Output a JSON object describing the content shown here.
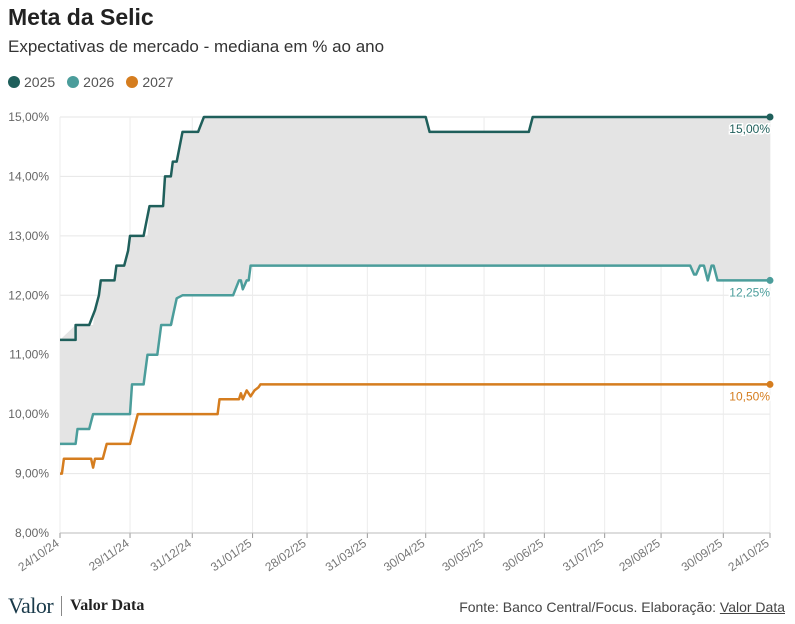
{
  "header": {
    "title": "Meta da Selic",
    "subtitle": "Expectativas de mercado - mediana em % ao ano"
  },
  "footer": {
    "logo_primary": "Valor",
    "logo_secondary": "Valor Data",
    "source_prefix": "Fonte: Banco Central/Focus. Elaboração:",
    "source_link": "Valor Data"
  },
  "chart_data": {
    "type": "line",
    "title": "Meta da Selic",
    "subtitle": "Expectativas de mercado - mediana em % ao ano",
    "ylim": [
      8,
      15
    ],
    "y_ticks": [
      8,
      9,
      10,
      11,
      12,
      13,
      14,
      15
    ],
    "y_tick_labels": [
      "8,00%",
      "9,00%",
      "10,00%",
      "11,00%",
      "12,00%",
      "13,00%",
      "14,00%",
      "15,00%"
    ],
    "x_tick_labels": [
      "24/10/24",
      "29/11/24",
      "31/12/24",
      "31/01/25",
      "28/02/25",
      "31/03/25",
      "30/04/25",
      "30/05/25",
      "30/06/25",
      "31/07/25",
      "29/08/25",
      "30/09/25",
      "24/10/25"
    ],
    "x_tick_dates": [
      "2024-10-24",
      "2024-11-29",
      "2024-12-31",
      "2025-01-31",
      "2025-02-28",
      "2025-03-31",
      "2025-04-30",
      "2025-05-30",
      "2025-06-30",
      "2025-07-31",
      "2025-08-29",
      "2025-09-30",
      "2025-10-24"
    ],
    "grid": true,
    "legend": "top-left",
    "shaded_band": {
      "between": [
        "2025",
        "2026"
      ],
      "color": "#e4e4e4"
    },
    "series": [
      {
        "name": "2025",
        "color": "#1f5f5b",
        "end_label": "15,00%",
        "points": [
          [
            "2024-10-24",
            11.25
          ],
          [
            "2024-11-01",
            11.25
          ],
          [
            "2024-11-01",
            11.5
          ],
          [
            "2024-11-08",
            11.5
          ],
          [
            "2024-11-11",
            11.75
          ],
          [
            "2024-11-13",
            12.0
          ],
          [
            "2024-11-14",
            12.25
          ],
          [
            "2024-11-21",
            12.25
          ],
          [
            "2024-11-22",
            12.5
          ],
          [
            "2024-11-26",
            12.5
          ],
          [
            "2024-11-28",
            12.75
          ],
          [
            "2024-11-29",
            13.0
          ],
          [
            "2024-12-06",
            13.0
          ],
          [
            "2024-12-09",
            13.5
          ],
          [
            "2024-12-16",
            13.5
          ],
          [
            "2024-12-17",
            14.0
          ],
          [
            "2024-12-20",
            14.0
          ],
          [
            "2024-12-21",
            14.25
          ],
          [
            "2024-12-23",
            14.25
          ],
          [
            "2024-12-26",
            14.75
          ],
          [
            "2025-01-03",
            14.75
          ],
          [
            "2025-01-06",
            15.0
          ],
          [
            "2025-04-30",
            15.0
          ],
          [
            "2025-05-02",
            14.75
          ],
          [
            "2025-06-22",
            14.75
          ],
          [
            "2025-06-24",
            15.0
          ],
          [
            "2025-10-24",
            15.0
          ]
        ]
      },
      {
        "name": "2026",
        "color": "#4b9d9b",
        "end_label": "12,25%",
        "points": [
          [
            "2024-10-24",
            9.5
          ],
          [
            "2024-11-01",
            9.5
          ],
          [
            "2024-11-02",
            9.75
          ],
          [
            "2024-11-08",
            9.75
          ],
          [
            "2024-11-10",
            10.0
          ],
          [
            "2024-11-29",
            10.0
          ],
          [
            "2024-11-30",
            10.5
          ],
          [
            "2024-12-06",
            10.5
          ],
          [
            "2024-12-08",
            11.0
          ],
          [
            "2024-12-13",
            11.0
          ],
          [
            "2024-12-15",
            11.5
          ],
          [
            "2024-12-20",
            11.5
          ],
          [
            "2024-12-23",
            11.95
          ],
          [
            "2024-12-26",
            12.0
          ],
          [
            "2025-01-21",
            12.0
          ],
          [
            "2025-01-24",
            12.25
          ],
          [
            "2025-01-25",
            12.25
          ],
          [
            "2025-01-26",
            12.1
          ],
          [
            "2025-01-28",
            12.25
          ],
          [
            "2025-01-29",
            12.25
          ],
          [
            "2025-01-30",
            12.5
          ],
          [
            "2025-09-13",
            12.5
          ],
          [
            "2025-09-15",
            12.35
          ],
          [
            "2025-09-16",
            12.35
          ],
          [
            "2025-09-18",
            12.5
          ],
          [
            "2025-09-20",
            12.5
          ],
          [
            "2025-09-22",
            12.25
          ],
          [
            "2025-09-24",
            12.5
          ],
          [
            "2025-09-25",
            12.5
          ],
          [
            "2025-09-27",
            12.25
          ],
          [
            "2025-10-24",
            12.25
          ]
        ]
      },
      {
        "name": "2027",
        "color": "#d57d1f",
        "end_label": "10,50%",
        "points": [
          [
            "2024-10-24",
            9.0
          ],
          [
            "2024-10-25",
            9.0
          ],
          [
            "2024-10-26",
            9.25
          ],
          [
            "2024-11-09",
            9.25
          ],
          [
            "2024-11-10",
            9.1
          ],
          [
            "2024-11-11",
            9.25
          ],
          [
            "2024-11-15",
            9.25
          ],
          [
            "2024-11-17",
            9.5
          ],
          [
            "2024-11-29",
            9.5
          ],
          [
            "2024-12-01",
            9.75
          ],
          [
            "2024-12-03",
            10.0
          ],
          [
            "2025-01-13",
            10.0
          ],
          [
            "2025-01-14",
            10.25
          ],
          [
            "2025-01-24",
            10.25
          ],
          [
            "2025-01-25",
            10.35
          ],
          [
            "2025-01-26",
            10.25
          ],
          [
            "2025-01-28",
            10.4
          ],
          [
            "2025-01-30",
            10.3
          ],
          [
            "2025-02-01",
            10.4
          ],
          [
            "2025-02-03",
            10.45
          ],
          [
            "2025-02-04",
            10.5
          ],
          [
            "2025-10-24",
            10.5
          ]
        ]
      }
    ]
  }
}
